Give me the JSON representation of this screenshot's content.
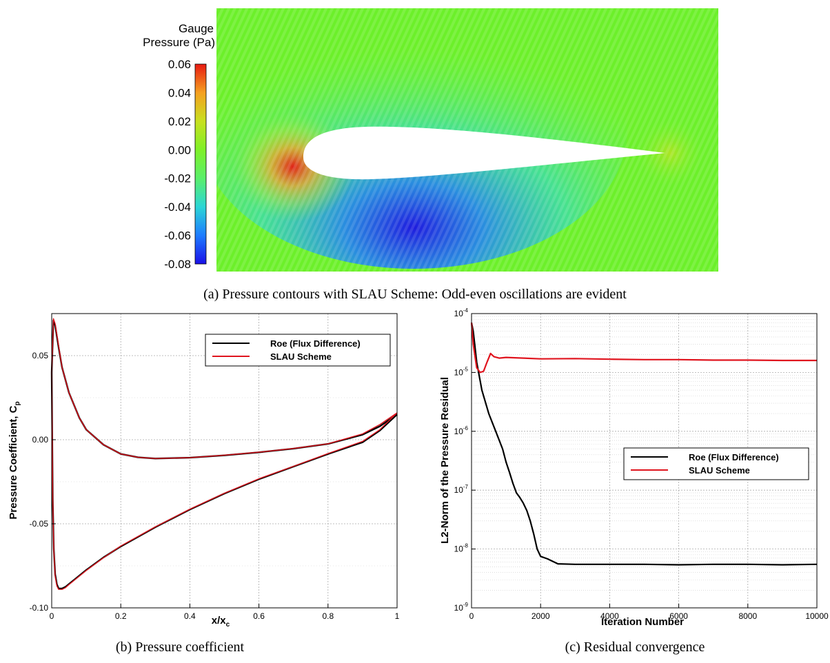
{
  "captions": {
    "a": "(a) Pressure contours with SLAU Scheme:  Odd-even oscillations are evident",
    "b": "(b) Pressure coefficient",
    "c": "(c) Residual convergence"
  },
  "colors": {
    "roe": "#000000",
    "slau": "#e0141e",
    "grid": "#aaaaaa",
    "field": "#6cf02a"
  },
  "chart_data": [
    {
      "type": "heatmap",
      "id": "a",
      "colorbar": {
        "title_line1": "Gauge",
        "title_line2": "Pressure (Pa)",
        "range": [
          -0.08,
          0.06
        ],
        "ticks": [
          "0.06",
          "0.04",
          "0.02",
          "0.00",
          "-0.02",
          "-0.04",
          "-0.06",
          "-0.08"
        ],
        "colormap": [
          "#1a10e8",
          "#1e7cff",
          "#2cd6d6",
          "#5aef6a",
          "#7ff028",
          "#c8e020",
          "#f5a020",
          "#e81a12"
        ]
      }
    },
    {
      "type": "line",
      "id": "b",
      "xlabel_main": "x/x",
      "xlabel_sub": "c",
      "ylabel_main": "Pressure Coefficient, C",
      "ylabel_sub": "p",
      "xlim": [
        0,
        1
      ],
      "ylim": [
        -0.1,
        0.075
      ],
      "xticks": [
        0,
        0.2,
        0.4,
        0.6,
        0.8,
        1
      ],
      "xtick_labels": [
        "0",
        "0.2",
        "0.4",
        "0.6",
        "0.8",
        "1"
      ],
      "yticks": [
        -0.1,
        -0.05,
        0,
        0.05
      ],
      "ytick_labels": [
        "-0.10",
        "-0.05",
        "0.00",
        "0.05"
      ],
      "legend_position": "top-right",
      "series": [
        {
          "name": "Roe (Flux Difference)",
          "upper": {
            "x": [
              0,
              0.005,
              0.01,
              0.02,
              0.03,
              0.05,
              0.08,
              0.1,
              0.15,
              0.2,
              0.25,
              0.3,
              0.4,
              0.5,
              0.6,
              0.7,
              0.8,
              0.9,
              0.95,
              1.0
            ],
            "y": [
              0.04,
              0.071,
              0.068,
              0.055,
              0.043,
              0.028,
              0.013,
              0.006,
              -0.003,
              -0.0085,
              -0.0105,
              -0.0112,
              -0.0107,
              -0.0093,
              -0.0075,
              -0.0053,
              -0.0025,
              0.003,
              0.008,
              0.015
            ]
          },
          "lower": {
            "x": [
              0,
              0.003,
              0.006,
              0.01,
              0.015,
              0.02,
              0.03,
              0.04,
              0.05,
              0.07,
              0.1,
              0.15,
              0.2,
              0.3,
              0.4,
              0.5,
              0.6,
              0.7,
              0.8,
              0.9,
              0.95,
              1.0
            ],
            "y": [
              0.04,
              -0.035,
              -0.065,
              -0.08,
              -0.086,
              -0.0885,
              -0.0885,
              -0.0875,
              -0.0858,
              -0.0825,
              -0.0775,
              -0.07,
              -0.0635,
              -0.052,
              -0.0415,
              -0.032,
              -0.0235,
              -0.016,
              -0.0085,
              -0.0015,
              0.0055,
              0.015
            ]
          }
        },
        {
          "name": "SLAU Scheme",
          "upper": {
            "x": [
              0,
              0.005,
              0.01,
              0.02,
              0.03,
              0.05,
              0.08,
              0.1,
              0.15,
              0.2,
              0.25,
              0.3,
              0.4,
              0.5,
              0.6,
              0.7,
              0.8,
              0.9,
              0.95,
              1.0
            ],
            "y": [
              0.04,
              0.072,
              0.069,
              0.056,
              0.043,
              0.028,
              0.013,
              0.006,
              -0.003,
              -0.0085,
              -0.0105,
              -0.0112,
              -0.0107,
              -0.0092,
              -0.0074,
              -0.0052,
              -0.0024,
              0.0035,
              0.009,
              0.016
            ]
          },
          "lower": {
            "x": [
              0,
              0.003,
              0.006,
              0.01,
              0.015,
              0.02,
              0.03,
              0.04,
              0.05,
              0.07,
              0.1,
              0.15,
              0.2,
              0.3,
              0.4,
              0.5,
              0.6,
              0.7,
              0.8,
              0.9,
              0.95,
              1.0
            ],
            "y": [
              0.04,
              -0.035,
              -0.065,
              -0.081,
              -0.087,
              -0.089,
              -0.089,
              -0.088,
              -0.0862,
              -0.0828,
              -0.0778,
              -0.0702,
              -0.0632,
              -0.0518,
              -0.0413,
              -0.0318,
              -0.0232,
              -0.0158,
              -0.0082,
              -0.001,
              0.006,
              0.016
            ]
          }
        }
      ]
    },
    {
      "type": "line",
      "id": "c",
      "xlabel": "Iteration Number",
      "ylabel": "L2-Norm of the Pressure Residual",
      "xlim": [
        0,
        10000
      ],
      "ylim": [
        1e-09,
        0.0001
      ],
      "yscale": "log",
      "xticks": [
        0,
        2000,
        4000,
        6000,
        8000,
        10000
      ],
      "xtick_labels": [
        "0",
        "2000",
        "4000",
        "6000",
        "8000",
        "10000"
      ],
      "yticks": [
        1e-09,
        1e-08,
        1e-07,
        1e-06,
        1e-05,
        0.0001
      ],
      "ytick_base": "10",
      "ytick_exps": [
        "-9",
        "-8",
        "-7",
        "-6",
        "-5",
        "-4"
      ],
      "legend_position": "center-right",
      "series": [
        {
          "name": "Roe (Flux Difference)",
          "x": [
            0,
            50,
            150,
            300,
            500,
            700,
            900,
            1000,
            1100,
            1200,
            1300,
            1400,
            1500,
            1600,
            1700,
            1800,
            1900,
            2000,
            2200,
            2500,
            3000,
            4000,
            5000,
            6000,
            7000,
            8000,
            9000,
            10000
          ],
          "y": [
            7e-05,
            5e-05,
            1.5e-05,
            5e-06,
            2e-06,
            1e-06,
            5e-07,
            3e-07,
            2e-07,
            1.3e-07,
            9e-08,
            7.5e-08,
            6e-08,
            4.5e-08,
            3e-08,
            1.8e-08,
            1e-08,
            7.5e-09,
            6.8e-09,
            5.6e-09,
            5.5e-09,
            5.5e-09,
            5.5e-09,
            5.4e-09,
            5.5e-09,
            5.5e-09,
            5.4e-09,
            5.5e-09
          ]
        },
        {
          "name": "SLAU Scheme",
          "x": [
            0,
            50,
            150,
            250,
            350,
            450,
            550,
            650,
            800,
            1000,
            1500,
            2000,
            3000,
            4000,
            5000,
            6000,
            7000,
            8000,
            9000,
            10000
          ],
          "y": [
            7e-05,
            3e-05,
            1.2e-05,
            1e-05,
            1.05e-05,
            1.5e-05,
            2.1e-05,
            1.85e-05,
            1.75e-05,
            1.8e-05,
            1.75e-05,
            1.7e-05,
            1.72e-05,
            1.68e-05,
            1.65e-05,
            1.65e-05,
            1.62e-05,
            1.62e-05,
            1.6e-05,
            1.6e-05
          ]
        }
      ]
    }
  ]
}
